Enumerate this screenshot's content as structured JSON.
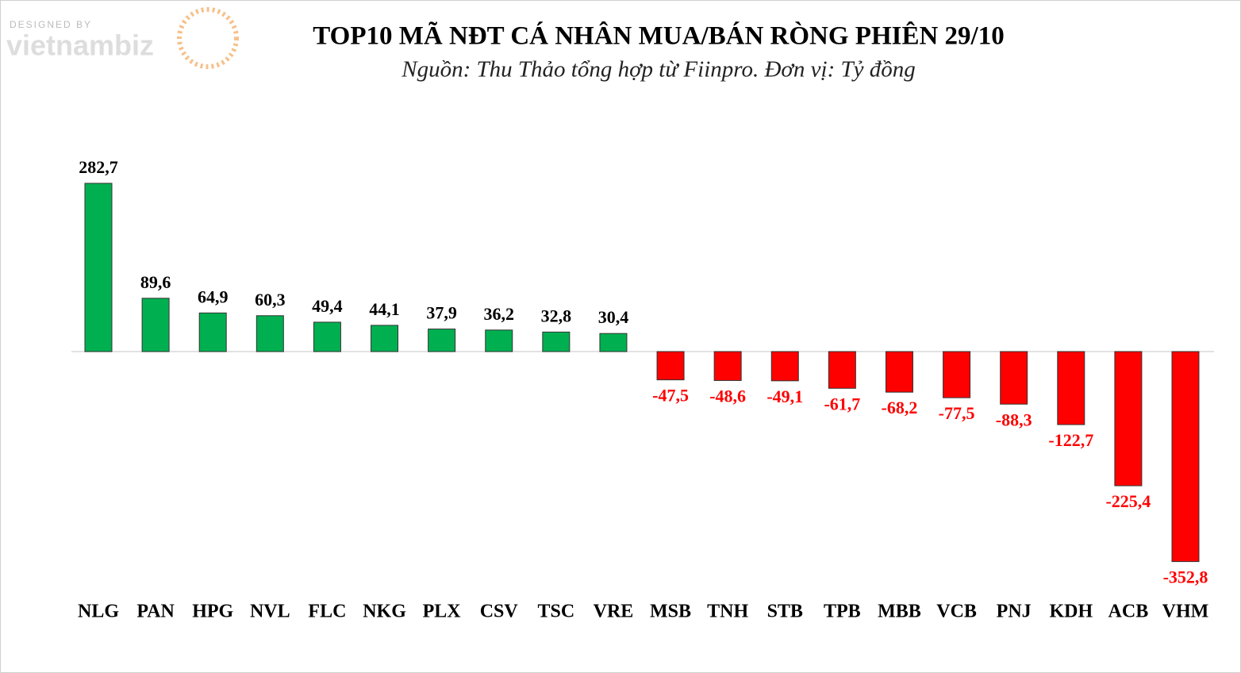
{
  "watermark": {
    "designed_by": "DESIGNED BY",
    "brand": "vietnambiz"
  },
  "chart_data": {
    "type": "bar",
    "title": "TOP10 MÃ NĐT CÁ NHÂN MUA/BÁN RÒNG PHIÊN 29/10",
    "subtitle": "Nguồn: Thu Thảo tổng hợp từ Fiinpro. Đơn vị: Tỷ đồng",
    "categories": [
      "NLG",
      "PAN",
      "HPG",
      "NVL",
      "FLC",
      "NKG",
      "PLX",
      "CSV",
      "TSC",
      "VRE",
      "MSB",
      "TNH",
      "STB",
      "TPB",
      "MBB",
      "VCB",
      "PNJ",
      "KDH",
      "ACB",
      "VHM"
    ],
    "values": [
      282.7,
      89.6,
      64.9,
      60.3,
      49.4,
      44.1,
      37.9,
      36.2,
      32.8,
      30.4,
      -47.5,
      -48.6,
      -49.1,
      -61.7,
      -68.2,
      -77.5,
      -88.3,
      -122.7,
      -225.4,
      -352.8
    ],
    "value_labels": [
      "282,7",
      "89,6",
      "64,9",
      "60,3",
      "49,4",
      "44,1",
      "37,9",
      "36,2",
      "32,8",
      "30,4",
      "-47,5",
      "-48,6",
      "-49,1",
      "-61,7",
      "-68,2",
      "-77,5",
      "-88,3",
      "-122,7",
      "-225,4",
      "-352,8"
    ],
    "positive_color": "#00b050",
    "negative_color": "#ff0000"
  }
}
